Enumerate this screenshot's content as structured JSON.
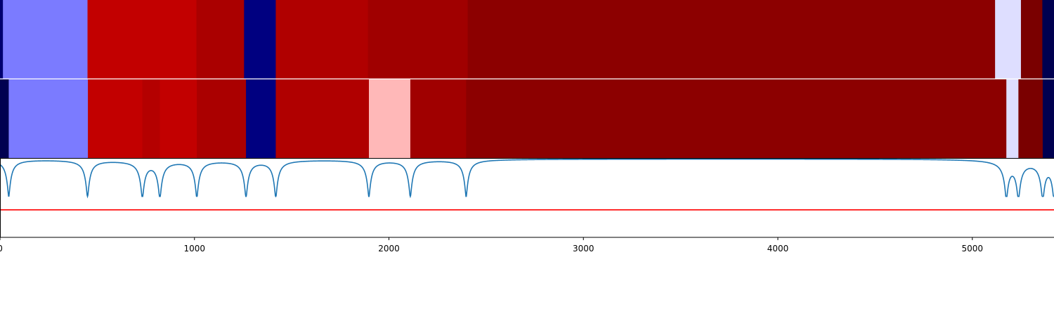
{
  "chart_data": {
    "type": "heatmap",
    "x_range": [
      0,
      5420
    ],
    "x_ticks": [
      {
        "value": 0,
        "label": "0"
      },
      {
        "value": 1000,
        "label": "1000"
      },
      {
        "value": 2000,
        "label": "2000"
      },
      {
        "value": 3000,
        "label": "3000"
      },
      {
        "value": 4000,
        "label": "4000"
      },
      {
        "value": 5000,
        "label": "5000"
      }
    ],
    "tracks": [
      {
        "segments": [
          {
            "start": 0,
            "end": 15,
            "color": "#000070"
          },
          {
            "start": 15,
            "end": 450,
            "color": "#7B7BFF"
          },
          {
            "start": 450,
            "end": 1010,
            "color": "#C20000"
          },
          {
            "start": 1010,
            "end": 1255,
            "color": "#AA0000"
          },
          {
            "start": 1255,
            "end": 1418,
            "color": "#000080"
          },
          {
            "start": 1418,
            "end": 1892,
            "color": "#B00000"
          },
          {
            "start": 1892,
            "end": 2405,
            "color": "#A00000"
          },
          {
            "start": 2405,
            "end": 5117,
            "color": "#8C0000"
          },
          {
            "start": 5117,
            "end": 5250,
            "color": "#DEDEFF"
          },
          {
            "start": 5250,
            "end": 5360,
            "color": "#7A0000"
          },
          {
            "start": 5360,
            "end": 5420,
            "color": "#000050"
          }
        ]
      },
      {
        "segments": [
          {
            "start": 0,
            "end": 45,
            "color": "#000050"
          },
          {
            "start": 45,
            "end": 452,
            "color": "#7B7BFF"
          },
          {
            "start": 452,
            "end": 732,
            "color": "#C20000"
          },
          {
            "start": 732,
            "end": 822,
            "color": "#B40000"
          },
          {
            "start": 822,
            "end": 1012,
            "color": "#C20000"
          },
          {
            "start": 1012,
            "end": 1265,
            "color": "#AA0000"
          },
          {
            "start": 1265,
            "end": 1418,
            "color": "#000080"
          },
          {
            "start": 1418,
            "end": 1897,
            "color": "#B00000"
          },
          {
            "start": 1897,
            "end": 2110,
            "color": "#FFB8B8"
          },
          {
            "start": 2110,
            "end": 2397,
            "color": "#A00000"
          },
          {
            "start": 2397,
            "end": 5175,
            "color": "#8C0000"
          },
          {
            "start": 5175,
            "end": 5237,
            "color": "#DEDEFF"
          },
          {
            "start": 5237,
            "end": 5362,
            "color": "#7A0000"
          },
          {
            "start": 5362,
            "end": 5420,
            "color": "#000050"
          }
        ]
      }
    ],
    "line_series": {
      "color": "#1F77B4",
      "baseline": 1.0,
      "y_range": [
        0,
        1
      ],
      "dip_min": 0.52,
      "dip_width": 12,
      "dip_positions": [
        45,
        450,
        732,
        822,
        1012,
        1265,
        1418,
        1897,
        2110,
        2397,
        5175,
        5237,
        5362,
        5420
      ]
    },
    "threshold_line": {
      "value": 0.35,
      "color": "#FF0000"
    }
  }
}
